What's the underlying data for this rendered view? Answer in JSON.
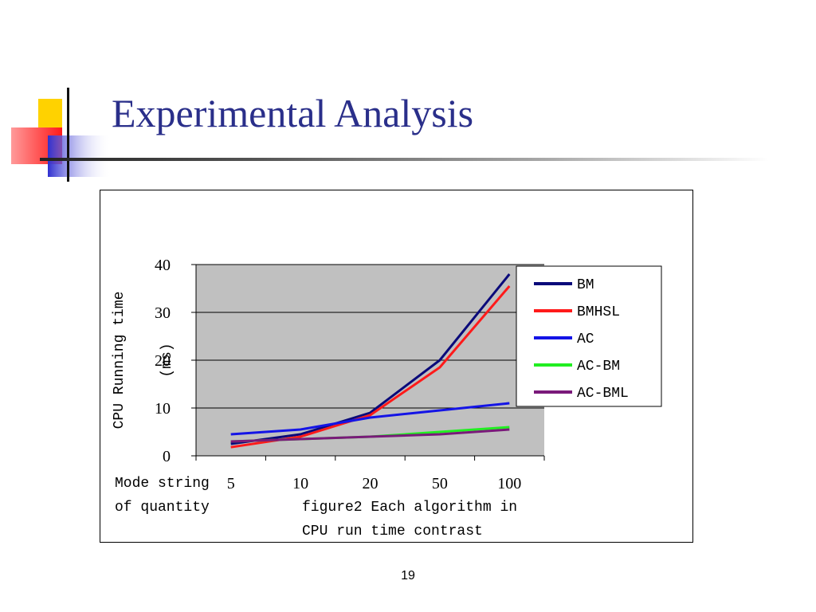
{
  "slide": {
    "title": "Experimental Analysis",
    "page_number": "19"
  },
  "chart_data": {
    "type": "line",
    "categories": [
      "5",
      "10",
      "20",
      "50",
      "100"
    ],
    "x_caption_lines": [
      "Mode string",
      "of quantity"
    ],
    "caption_lines": [
      "figure2   Each algorithm in",
      "CPU run time contrast"
    ],
    "ylabel_lines": [
      "CPU Running time",
      "(ms)"
    ],
    "yticks": [
      "0",
      "10",
      "20",
      "30",
      "40"
    ],
    "ylim": [
      0,
      40
    ],
    "grid": true,
    "legend_position": "top-right",
    "plot_background": "#c0c0c0",
    "series": [
      {
        "name": "BM",
        "color": "#0a0a7a",
        "values": [
          2.5,
          4.5,
          9,
          20,
          38
        ]
      },
      {
        "name": "BMHSL",
        "color": "#ff1a1a",
        "values": [
          1.8,
          4,
          8.5,
          18.5,
          35.5
        ]
      },
      {
        "name": "AC",
        "color": "#1414e6",
        "values": [
          4.5,
          5.5,
          8,
          9.5,
          11
        ]
      },
      {
        "name": "AC-BM",
        "color": "#22ee22",
        "values": [
          3,
          3.5,
          4,
          5,
          6
        ]
      },
      {
        "name": "AC-BML",
        "color": "#7a1a7a",
        "values": [
          3,
          3.5,
          4,
          4.5,
          5.5
        ]
      }
    ]
  }
}
